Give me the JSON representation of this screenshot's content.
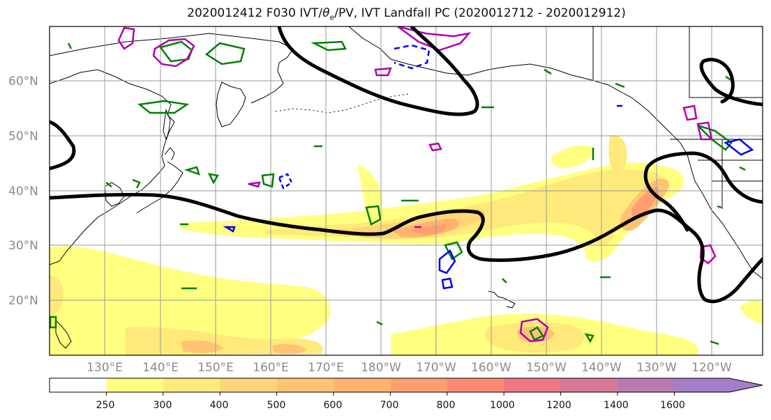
{
  "title": "2020012412 F030 IVT/θe/PV, IVT Landfall PC (2020012712 - 2020012912)",
  "title_parts": {
    "prefix": "2020012412 F030 IVT/",
    "theta": "θ",
    "sub": "e",
    "suffix": "/PV, IVT Landfall PC (2020012712 - 2020012912)"
  },
  "map": {
    "lat_labels": [
      "60°N",
      "50°N",
      "40°N",
      "30°N",
      "20°N"
    ],
    "lon_labels": [
      "130°E",
      "140°E",
      "150°E",
      "160°E",
      "170°E",
      "180°W",
      "170°W",
      "160°W",
      "150°W",
      "140°W",
      "130°W",
      "120°W"
    ],
    "colors": {
      "coast": "#000000",
      "grid": "#9a9a9a",
      "pc_contour": "#000000",
      "theta_e": "#008000",
      "pv_positive": "#b000b0",
      "pv_negative": "#0000ee"
    }
  },
  "colorbar": {
    "levels": [
      "250",
      "300",
      "400",
      "500",
      "600",
      "700",
      "800",
      "1000",
      "1200",
      "1400",
      "1600"
    ],
    "colors": [
      "#ffffff",
      "#ffff80",
      "#ffe97a",
      "#ffd577",
      "#ffc473",
      "#ffb36f",
      "#ff9f6f",
      "#ff8a70",
      "#f07781",
      "#d77896",
      "#b97ab4",
      "#a47ec6"
    ],
    "extend": "max"
  }
}
